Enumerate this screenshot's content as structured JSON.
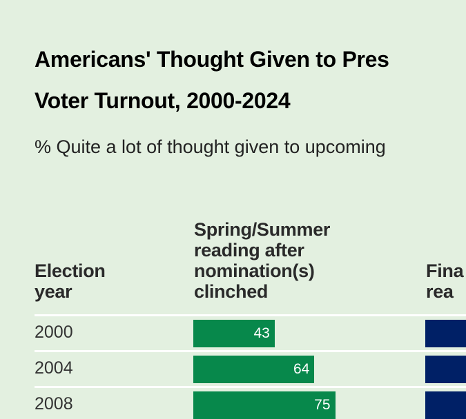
{
  "title_line1": "Americans' Thought Given to Pres",
  "title_line2": "Voter Turnout, 2000-2024",
  "subtitle": "% Quite a lot of thought given to upcoming",
  "colors": {
    "background": "#e3f0e0",
    "spring_summer": "#07884b",
    "final": "#002066"
  },
  "chart_data": {
    "type": "bar",
    "columns": [
      "Election year",
      "Spring/Summer reading after nomination(s) clinched",
      "Fina rea"
    ],
    "header_lines": {
      "year": [
        "Election",
        "year"
      ],
      "spring": [
        "Spring/Summer",
        "reading after",
        "nomination(s)",
        "clinched"
      ],
      "final": [
        "Fina",
        "rea"
      ]
    },
    "categories": [
      "2000",
      "2004",
      "2008"
    ],
    "series": [
      {
        "name": "Spring/Summer reading after nomination(s) clinched",
        "values": [
          43,
          64,
          75
        ]
      }
    ]
  }
}
